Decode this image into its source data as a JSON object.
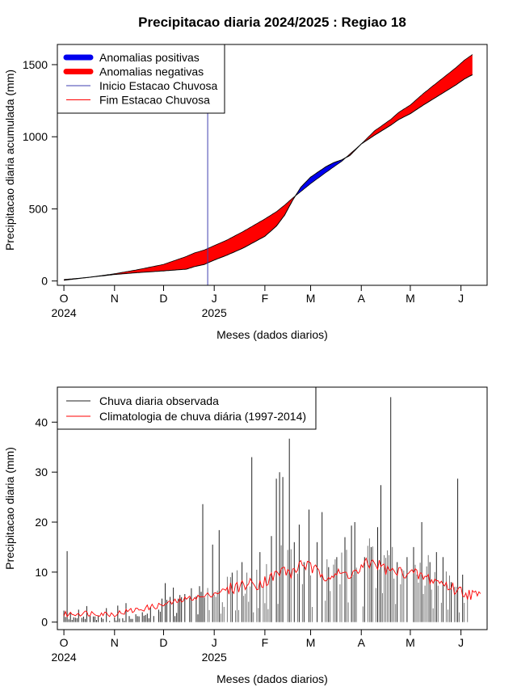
{
  "colors": {
    "positive": "#0000ee",
    "negative": "#ff0000",
    "onset_line": "#3f3fb0",
    "end_line": "#ff0000",
    "observed_bars": "#222222",
    "climatology": "#ff0000"
  },
  "chart_data": [
    {
      "type": "area",
      "title": "Precipitacao diaria 2024/2025 : Regiao 18",
      "xlabel": "Meses (dados diarios)",
      "ylabel": "Precipitacao diaria acumulada (mm)",
      "x_unit": "days since 2024-10-01",
      "xlim": [
        -4,
        259
      ],
      "ylim": [
        -30,
        1640
      ],
      "yticks": [
        0,
        500,
        1000,
        1500
      ],
      "ytick_labels": [
        "0",
        "500",
        "1000",
        "1500"
      ],
      "month_ticks": [
        {
          "day": 0,
          "label": "O",
          "year": "2024"
        },
        {
          "day": 31,
          "label": "N",
          "year": ""
        },
        {
          "day": 61,
          "label": "D",
          "year": ""
        },
        {
          "day": 92,
          "label": "J",
          "year": "2025"
        },
        {
          "day": 123,
          "label": "F",
          "year": ""
        },
        {
          "day": 151,
          "label": "M",
          "year": ""
        },
        {
          "day": 182,
          "label": "A",
          "year": ""
        },
        {
          "day": 212,
          "label": "M",
          "year": ""
        },
        {
          "day": 243,
          "label": "J",
          "year": ""
        }
      ],
      "onset_day": 88,
      "observed_cumulative": {
        "days": [
          0,
          15,
          31,
          45,
          61,
          75,
          80,
          86,
          92,
          100,
          110,
          123,
          130,
          135,
          140,
          145,
          151,
          160,
          165,
          170,
          175,
          182,
          190,
          200,
          205,
          212,
          220,
          230,
          240,
          245,
          250
        ],
        "values": [
          5,
          25,
          45,
          58,
          70,
          82,
          100,
          115,
          145,
          180,
          230,
          310,
          380,
          455,
          560,
          650,
          720,
          790,
          820,
          840,
          870,
          950,
          1010,
          1080,
          1120,
          1160,
          1220,
          1290,
          1360,
          1400,
          1430
        ]
      },
      "climatology_cumulative": {
        "days": [
          0,
          15,
          31,
          45,
          61,
          75,
          80,
          86,
          92,
          100,
          110,
          123,
          130,
          135,
          140,
          145,
          151,
          160,
          165,
          170,
          175,
          182,
          190,
          200,
          205,
          212,
          220,
          230,
          240,
          245,
          250
        ],
        "values": [
          10,
          25,
          50,
          78,
          115,
          170,
          195,
          215,
          245,
          285,
          345,
          430,
          480,
          525,
          575,
          620,
          675,
          750,
          790,
          830,
          880,
          950,
          1040,
          1120,
          1170,
          1220,
          1300,
          1390,
          1480,
          1530,
          1570
        ]
      },
      "legend": {
        "position": "top-left",
        "items": [
          {
            "label": "Anomalias positivas",
            "style": "thick",
            "color": "#0000ee"
          },
          {
            "label": "Anomalias negativas",
            "style": "thick",
            "color": "#ff0000"
          },
          {
            "label": "Inicio Estacao Chuvosa",
            "style": "thin",
            "color": "#3f3fb0"
          },
          {
            "label": "Fim Estacao Chuvosa",
            "style": "thin",
            "color": "#ff0000"
          }
        ]
      }
    },
    {
      "type": "bar",
      "xlabel": "Meses (dados diarios)",
      "ylabel": "Precipitacao diaria (mm)",
      "x_unit": "days since 2024-10-01",
      "xlim": [
        -4,
        259
      ],
      "ylim": [
        -1.5,
        47
      ],
      "yticks": [
        0,
        10,
        20,
        30,
        40
      ],
      "ytick_labels": [
        "0",
        "10",
        "20",
        "30",
        "40"
      ],
      "observed_peaks": [
        {
          "day": 0,
          "value": 2.3
        },
        {
          "day": 2,
          "value": 14.2
        },
        {
          "day": 4,
          "value": 1.8
        },
        {
          "day": 9,
          "value": 2.5
        },
        {
          "day": 14,
          "value": 3.2
        },
        {
          "day": 26,
          "value": 2.8
        },
        {
          "day": 33,
          "value": 3.3
        },
        {
          "day": 38,
          "value": 3.8
        },
        {
          "day": 53,
          "value": 3.0
        },
        {
          "day": 62,
          "value": 7.8
        },
        {
          "day": 67,
          "value": 6.9
        },
        {
          "day": 72,
          "value": 5.0
        },
        {
          "day": 81,
          "value": 5.2
        },
        {
          "day": 85,
          "value": 23.6
        },
        {
          "day": 91,
          "value": 15.5
        },
        {
          "day": 95,
          "value": 18.4
        },
        {
          "day": 103,
          "value": 9.9
        },
        {
          "day": 109,
          "value": 12.0
        },
        {
          "day": 115,
          "value": 33.0
        },
        {
          "day": 120,
          "value": 14.0
        },
        {
          "day": 127,
          "value": 17.2
        },
        {
          "day": 130,
          "value": 28.7
        },
        {
          "day": 132,
          "value": 30.0
        },
        {
          "day": 134,
          "value": 29.0
        },
        {
          "day": 138,
          "value": 36.7
        },
        {
          "day": 141,
          "value": 16.0
        },
        {
          "day": 144,
          "value": 19.5
        },
        {
          "day": 147,
          "value": 12.0
        },
        {
          "day": 150,
          "value": 22.5
        },
        {
          "day": 155,
          "value": 16.0
        },
        {
          "day": 158,
          "value": 22.0
        },
        {
          "day": 162,
          "value": 11.0
        },
        {
          "day": 167,
          "value": 13.0
        },
        {
          "day": 172,
          "value": 17.0
        },
        {
          "day": 176,
          "value": 19.3
        },
        {
          "day": 178,
          "value": 20.0
        },
        {
          "day": 184,
          "value": 13.0
        },
        {
          "day": 188,
          "value": 15.0
        },
        {
          "day": 192,
          "value": 19.0
        },
        {
          "day": 194,
          "value": 27.4
        },
        {
          "day": 200,
          "value": 45.0
        },
        {
          "day": 204,
          "value": 12.0
        },
        {
          "day": 210,
          "value": 13.0
        },
        {
          "day": 214,
          "value": 15.0
        },
        {
          "day": 219,
          "value": 20.0
        },
        {
          "day": 224,
          "value": 12.0
        },
        {
          "day": 228,
          "value": 14.0
        },
        {
          "day": 232,
          "value": 13.0
        },
        {
          "day": 237,
          "value": 8.0
        },
        {
          "day": 241,
          "value": 28.7
        },
        {
          "day": 244,
          "value": 9.5
        }
      ],
      "climatology": {
        "days": [
          0,
          10,
          20,
          30,
          40,
          50,
          60,
          70,
          80,
          85,
          90,
          100,
          110,
          120,
          125,
          130,
          135,
          140,
          145,
          150,
          155,
          160,
          170,
          180,
          185,
          190,
          195,
          200,
          210,
          220,
          230,
          240,
          250,
          255
        ],
        "values": [
          1.5,
          1.8,
          1.8,
          1.6,
          2.2,
          2.8,
          3.4,
          4.2,
          5.0,
          5.0,
          5.6,
          6.5,
          7.5,
          7.8,
          8.5,
          9.5,
          10.5,
          9.5,
          12.0,
          11.0,
          10.0,
          9.5,
          9.5,
          10.0,
          11.5,
          12.0,
          11.0,
          10.0,
          10.0,
          9.0,
          8.0,
          6.5,
          5.5,
          5.0
        ]
      },
      "legend": {
        "position": "top-left",
        "items": [
          {
            "label": "Chuva diaria observada",
            "style": "thin",
            "color": "#222222"
          },
          {
            "label": "Climatologia de chuva diária (1997-2014)",
            "style": "thin",
            "color": "#ff0000"
          }
        ]
      }
    }
  ]
}
